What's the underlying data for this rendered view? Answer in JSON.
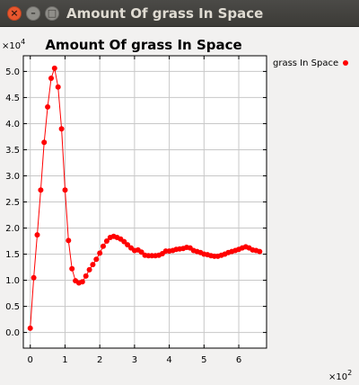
{
  "window": {
    "title": "Amount Of grass In Space",
    "close_glyph": "×",
    "minimize_glyph": "–",
    "maximize_glyph": "□"
  },
  "chart_data": {
    "type": "line",
    "title": "Amount Of grass In Space",
    "xlabel": "",
    "ylabel": "",
    "x_exponent_label": "×10",
    "x_exponent_power": "2",
    "y_exponent_label": "×10",
    "y_exponent_power": "4",
    "xlim": [
      -0.2,
      6.8
    ],
    "ylim": [
      -0.3,
      5.3
    ],
    "x_tick_values": [
      0,
      1,
      2,
      3,
      4,
      5,
      6
    ],
    "x_tick_labels": [
      "0",
      "1",
      "2",
      "3",
      "4",
      "5",
      "6"
    ],
    "y_tick_values": [
      0,
      0.5,
      1,
      1.5,
      2,
      2.5,
      3,
      3.5,
      4,
      4.5,
      5
    ],
    "y_tick_labels": [
      "0.0",
      "0.5",
      "1.0",
      "1.5",
      "2.0",
      "2.5",
      "3.0",
      "3.5",
      "4.0",
      "4.5",
      "5.0"
    ],
    "grid": true,
    "legend_position": "outside-top-right",
    "series": [
      {
        "name": "grass In Space",
        "color": "#ff0000",
        "x": [
          0,
          0.1,
          0.2,
          0.3,
          0.4,
          0.5,
          0.6,
          0.7,
          0.8,
          0.9,
          1.0,
          1.1,
          1.2,
          1.3,
          1.4,
          1.5,
          1.6,
          1.7,
          1.8,
          1.9,
          2.0,
          2.1,
          2.2,
          2.3,
          2.4,
          2.5,
          2.6,
          2.7,
          2.8,
          2.9,
          3.0,
          3.1,
          3.2,
          3.3,
          3.4,
          3.5,
          3.6,
          3.7,
          3.8,
          3.9,
          4.0,
          4.1,
          4.2,
          4.3,
          4.4,
          4.5,
          4.6,
          4.7,
          4.8,
          4.9,
          5.0,
          5.1,
          5.2,
          5.3,
          5.4,
          5.5,
          5.6,
          5.7,
          5.8,
          5.9,
          6.0,
          6.1,
          6.2,
          6.3,
          6.4,
          6.5,
          6.6
        ],
        "y": [
          0.08,
          1.05,
          1.87,
          2.73,
          3.64,
          4.32,
          4.87,
          5.06,
          4.7,
          3.9,
          2.73,
          1.76,
          1.22,
          0.99,
          0.95,
          0.97,
          1.08,
          1.2,
          1.3,
          1.4,
          1.52,
          1.65,
          1.75,
          1.82,
          1.84,
          1.82,
          1.79,
          1.74,
          1.68,
          1.62,
          1.57,
          1.58,
          1.54,
          1.48,
          1.47,
          1.47,
          1.47,
          1.48,
          1.51,
          1.56,
          1.56,
          1.57,
          1.59,
          1.6,
          1.61,
          1.63,
          1.62,
          1.57,
          1.55,
          1.53,
          1.5,
          1.49,
          1.47,
          1.46,
          1.46,
          1.48,
          1.5,
          1.53,
          1.55,
          1.57,
          1.59,
          1.62,
          1.64,
          1.62,
          1.58,
          1.57,
          1.55
        ]
      }
    ]
  }
}
